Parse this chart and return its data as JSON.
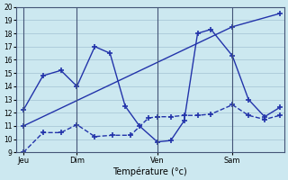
{
  "bg_color": "#cce8f0",
  "line_color": "#2233aa",
  "grid_color": "#aac8d8",
  "xlabel": "Température (°c)",
  "ylim": [
    9,
    20
  ],
  "yticks": [
    9,
    10,
    11,
    12,
    13,
    14,
    15,
    16,
    17,
    18,
    19,
    20
  ],
  "day_positions": [
    18,
    78,
    168,
    252
  ],
  "day_labels": [
    "Jeu",
    "Dim",
    "Ven",
    "Sam"
  ],
  "xlim": [
    10,
    310
  ],
  "line_wavy_x": [
    18,
    40,
    60,
    78,
    98,
    115,
    132,
    148,
    168,
    183,
    198,
    213,
    228,
    252,
    270,
    288,
    305
  ],
  "line_wavy_y": [
    12.2,
    14.8,
    15.2,
    14.0,
    17.0,
    16.5,
    12.5,
    11.0,
    9.8,
    9.9,
    11.4,
    18.0,
    18.3,
    16.3,
    13.0,
    11.7,
    12.4
  ],
  "line_min_x": [
    18,
    40,
    60,
    78,
    98,
    118,
    138,
    158,
    168,
    183,
    198,
    213,
    228,
    252,
    270,
    288,
    305
  ],
  "line_min_y": [
    9.0,
    10.5,
    10.5,
    11.1,
    10.2,
    10.3,
    10.3,
    11.6,
    11.7,
    11.7,
    11.8,
    11.8,
    11.9,
    12.6,
    11.8,
    11.5,
    11.8
  ],
  "line_trend_x": [
    18,
    252,
    305
  ],
  "line_trend_y": [
    11.0,
    18.5,
    19.5
  ]
}
